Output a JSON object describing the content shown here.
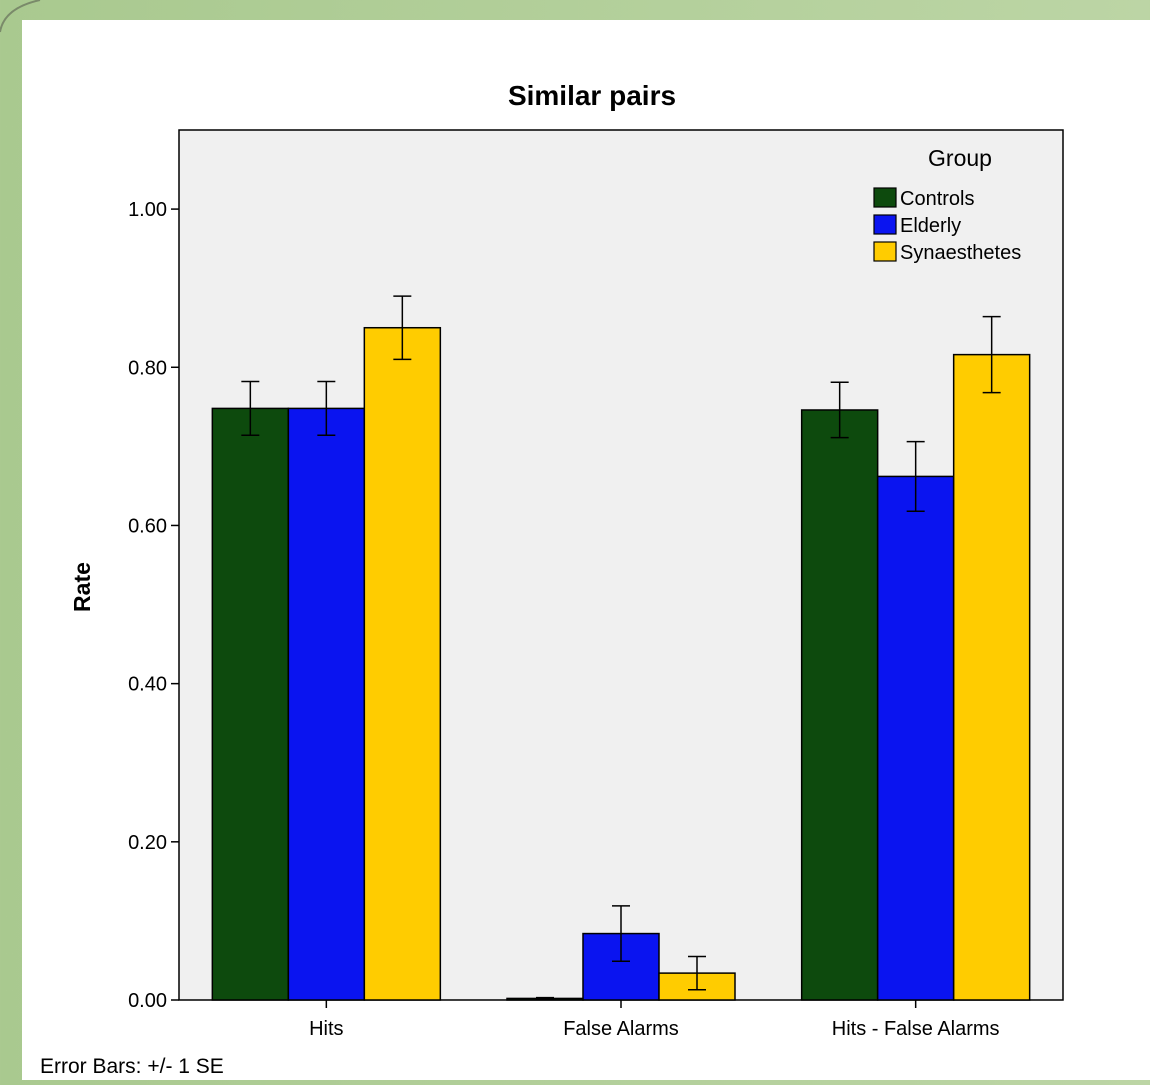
{
  "chart_data": {
    "type": "bar",
    "title": "Similar pairs",
    "xlabel": "",
    "ylabel": "Rate",
    "ylim": [
      0,
      1.1
    ],
    "yticks": [
      "0.00",
      "0.20",
      "0.40",
      "0.60",
      "0.80",
      "1.00"
    ],
    "categories": [
      "Hits",
      "False Alarms",
      "Hits - False Alarms"
    ],
    "legend": {
      "title": "Group",
      "placement": "top-right"
    },
    "series": [
      {
        "name": "Controls",
        "color": "#0d4a0d",
        "values": [
          0.748,
          0.002,
          0.746
        ],
        "errors": [
          0.034,
          0.001,
          0.035
        ]
      },
      {
        "name": "Elderly",
        "color": "#0a14f0",
        "values": [
          0.748,
          0.084,
          0.662
        ],
        "errors": [
          0.034,
          0.035,
          0.044
        ]
      },
      {
        "name": "Synaesthetes",
        "color": "#ffcc00",
        "values": [
          0.85,
          0.034,
          0.816
        ],
        "errors": [
          0.04,
          0.021,
          0.048
        ]
      }
    ],
    "grid": false,
    "footnote": "Error Bars: +/- 1 SE"
  }
}
